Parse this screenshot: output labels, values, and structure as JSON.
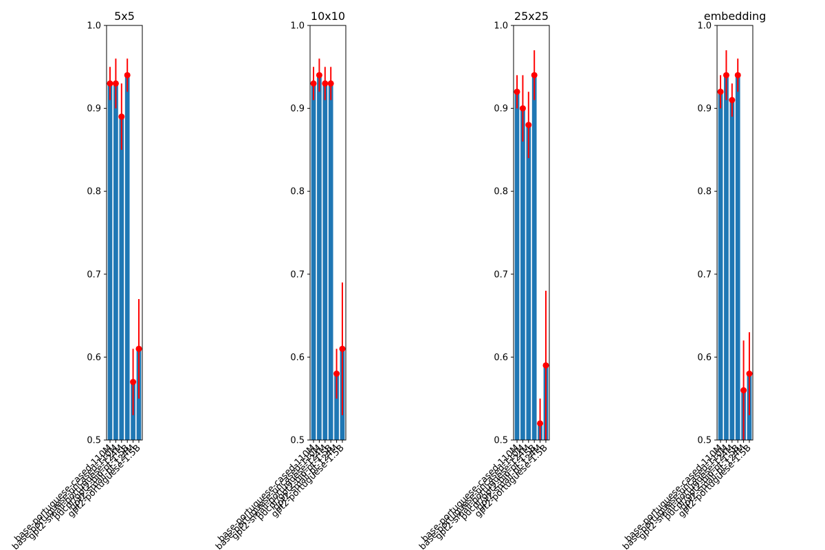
{
  "chart_data": [
    {
      "type": "bar",
      "title": "5x5",
      "categories": [
        "base-portuguese-cased-110M",
        "base-portuguese-uncased-110M",
        "gpt2-small-portuguese-124M",
        "pucpr/gpt2-bio-pt-1.5B",
        "gpt2-small-pt-124M",
        "gpt2-portuguese-1.5B"
      ],
      "values": [
        0.93,
        0.93,
        0.89,
        0.94,
        0.57,
        0.61
      ],
      "errors": [
        0.02,
        0.03,
        0.04,
        0.02,
        0.04,
        0.06
      ],
      "ylim": [
        0.5,
        1.0
      ],
      "yticks": [
        "0.5",
        "0.6",
        "0.7",
        "0.8",
        "0.9",
        "1.0"
      ]
    },
    {
      "type": "bar",
      "title": "10x10",
      "categories": [
        "base-portuguese-cased-110M",
        "base-portuguese-uncased-110M",
        "gpt2-small-portuguese-124M",
        "pucpr/gpt2-bio-pt-1.5B",
        "gpt2-small-pt-124M",
        "gpt2-portuguese-1.5B"
      ],
      "values": [
        0.93,
        0.94,
        0.93,
        0.93,
        0.58,
        0.61
      ],
      "errors": [
        0.02,
        0.02,
        0.02,
        0.02,
        0.03,
        0.08
      ],
      "ylim": [
        0.5,
        1.0
      ],
      "yticks": [
        "0.5",
        "0.6",
        "0.7",
        "0.8",
        "0.9",
        "1.0"
      ]
    },
    {
      "type": "bar",
      "title": "25x25",
      "categories": [
        "base-portuguese-cased-110M",
        "base-portuguese-uncased-110M",
        "gpt2-small-portuguese-124M",
        "pucpr/gpt2-bio-pt-1.5B",
        "gpt2-small-pt-124M",
        "gpt2-portuguese-1.5B"
      ],
      "values": [
        0.92,
        0.9,
        0.88,
        0.94,
        0.52,
        0.59
      ],
      "errors": [
        0.02,
        0.04,
        0.04,
        0.03,
        0.03,
        0.09
      ],
      "ylim": [
        0.5,
        1.0
      ],
      "yticks": [
        "0.5",
        "0.6",
        "0.7",
        "0.8",
        "0.9",
        "1.0"
      ]
    },
    {
      "type": "bar",
      "title": "embedding",
      "categories": [
        "base-portuguese-cased-110M",
        "base-portuguese-uncased-110M",
        "gpt2-small-portuguese-124M",
        "pucpr/gpt2-bio-pt-1.5B",
        "gpt2-small-pt-124M",
        "gpt2-portuguese-1.5B"
      ],
      "values": [
        0.92,
        0.94,
        0.91,
        0.94,
        0.56,
        0.58
      ],
      "errors": [
        0.02,
        0.03,
        0.02,
        0.02,
        0.06,
        0.05
      ],
      "ylim": [
        0.5,
        1.0
      ],
      "yticks": [
        "0.5",
        "0.6",
        "0.7",
        "0.8",
        "0.9",
        "1.0"
      ]
    }
  ],
  "colors": {
    "bar": "#1f77b4",
    "error": "#ff0000",
    "axis": "#000000"
  }
}
